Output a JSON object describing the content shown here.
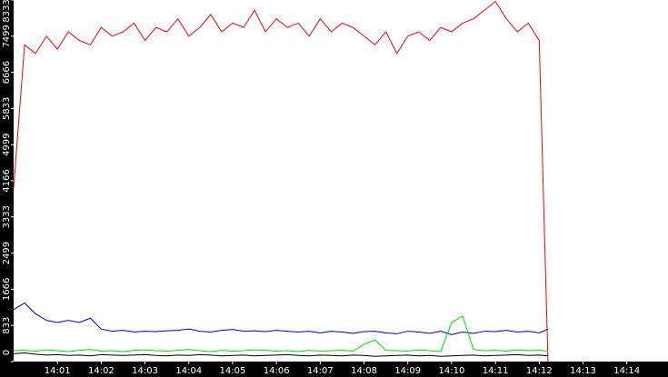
{
  "chart_data": {
    "type": "line",
    "x": [
      840,
      840.25,
      840.5,
      840.75,
      841,
      841.25,
      841.5,
      841.75,
      842,
      842.25,
      842.5,
      842.75,
      843,
      843.25,
      843.5,
      843.75,
      844,
      844.25,
      844.5,
      844.75,
      845,
      845.25,
      845.5,
      845.75,
      846,
      846.25,
      846.5,
      846.75,
      847,
      847.25,
      847.5,
      847.75,
      848,
      848.25,
      848.5,
      848.75,
      849,
      849.25,
      849.5,
      849.75,
      850,
      850.25,
      850.5,
      850.75,
      851,
      851.25,
      851.5,
      851.75,
      852,
      852.2
    ],
    "series": [
      {
        "color": "#ff0000",
        "values": [
          4000,
          7300,
          7100,
          7500,
          7200,
          7600,
          7400,
          7300,
          7700,
          7500,
          7600,
          7800,
          7400,
          7700,
          7600,
          7900,
          7500,
          7700,
          8000,
          7600,
          7800,
          7700,
          8100,
          7600,
          7900,
          7700,
          7800,
          7500,
          7900,
          7600,
          7800,
          7700,
          7500,
          7300,
          7600,
          7100,
          7500,
          7600,
          7400,
          7700,
          7600,
          7800,
          7900,
          8100,
          8300,
          7900,
          7600,
          7800,
          7400,
          0
        ]
      },
      {
        "color": "#0000c0",
        "values": [
          1200,
          1350,
          1100,
          950,
          900,
          950,
          900,
          1000,
          750,
          700,
          720,
          680,
          700,
          690,
          710,
          720,
          750,
          700,
          680,
          720,
          740,
          700,
          710,
          690,
          720,
          700,
          680,
          700,
          660,
          700,
          680,
          650,
          690,
          700,
          660,
          640,
          700,
          680,
          650,
          700,
          620,
          680,
          650,
          700,
          690,
          720,
          680,
          700,
          660,
          750
        ]
      },
      {
        "color": "#00e000",
        "values": [
          250,
          260,
          240,
          270,
          250,
          230,
          260,
          280,
          240,
          250,
          230,
          260,
          270,
          250,
          240,
          260,
          280,
          250,
          230,
          260,
          240,
          250,
          270,
          260,
          240,
          250,
          230,
          260,
          240,
          250,
          260,
          240,
          400,
          500,
          260,
          250,
          240,
          270,
          250,
          230,
          900,
          1050,
          280,
          250,
          260,
          240,
          270,
          250,
          260,
          240
        ]
      },
      {
        "color": "#000000",
        "values": [
          180,
          200,
          170,
          150,
          160,
          140,
          150,
          130,
          160,
          150,
          140,
          150,
          160,
          140,
          130,
          150,
          140,
          160,
          150,
          130,
          140,
          150,
          130,
          140,
          150,
          160,
          140,
          130,
          150,
          140,
          130,
          150,
          140,
          120,
          130,
          140,
          150,
          130,
          140,
          120,
          130,
          140,
          150,
          130,
          140,
          150,
          160,
          140,
          150,
          130
        ]
      }
    ],
    "xlim": [
      840,
      854.94
    ],
    "xticks": [
      {
        "value": 841,
        "label": "14:01"
      },
      {
        "value": 842,
        "label": "14:02"
      },
      {
        "value": 843,
        "label": "14:03"
      },
      {
        "value": 844,
        "label": "14:04"
      },
      {
        "value": 845,
        "label": "14:05"
      },
      {
        "value": 846,
        "label": "14:06"
      },
      {
        "value": 847,
        "label": "14:07"
      },
      {
        "value": 848,
        "label": "14:08"
      },
      {
        "value": 849,
        "label": "14:09"
      },
      {
        "value": 850,
        "label": "14:10"
      },
      {
        "value": 851,
        "label": "14:11"
      },
      {
        "value": 852,
        "label": "14:12"
      },
      {
        "value": 853,
        "label": "14:13"
      },
      {
        "value": 854,
        "label": "14:14"
      }
    ],
    "ylim": [
      0,
      8333
    ],
    "yticks": [
      0,
      833,
      1666,
      2499,
      3333,
      4166,
      4999,
      5833,
      6666,
      7499,
      8333
    ],
    "grid": false
  }
}
